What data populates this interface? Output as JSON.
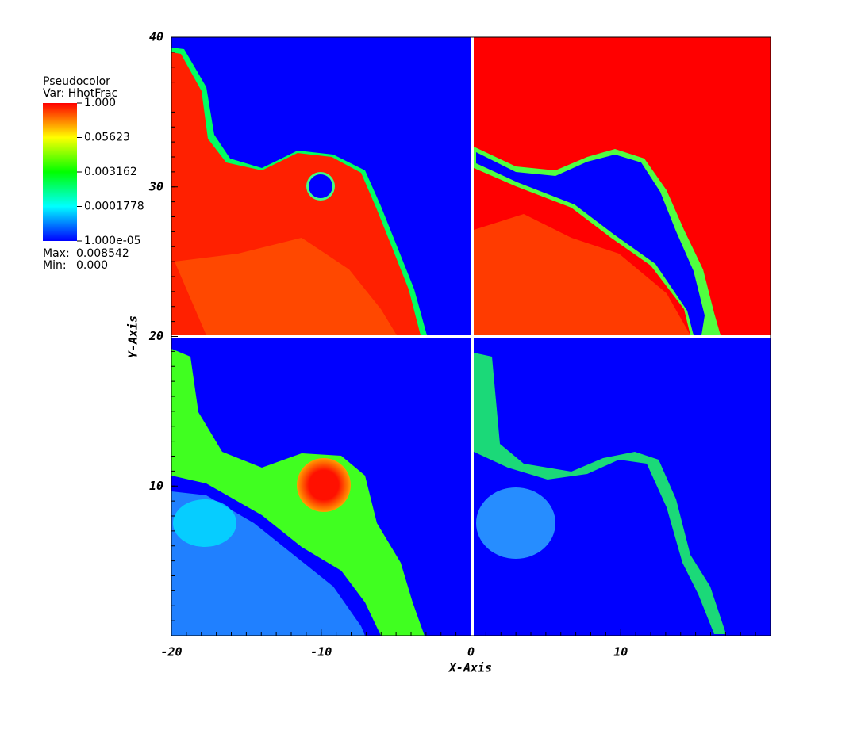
{
  "chart_data": {
    "type": "pseudocolor",
    "legend_title": "Pseudocolor",
    "legend_var": "Var: HhotFrac",
    "clim": [
      1e-05,
      1
    ],
    "color_scale": "log",
    "cticks": [
      {
        "value": 1,
        "label": "1.000"
      },
      0.05623,
      0.003162,
      0.0001778,
      {
        "value": 1e-05,
        "label": "1.000e-05"
      }
    ],
    "max_label": "Max:",
    "max": 0.008542,
    "min_label": "Min:",
    "min": {
      "value": 0,
      "label": "0.000"
    },
    "xlabel": "X-Axis",
    "ylabel": "Y-Axis",
    "xlim": [
      -20,
      20
    ],
    "ylim": [
      0,
      40
    ],
    "xticks": [
      -20,
      -10,
      0,
      10
    ],
    "yticks": [
      10,
      20,
      30,
      40
    ]
  }
}
